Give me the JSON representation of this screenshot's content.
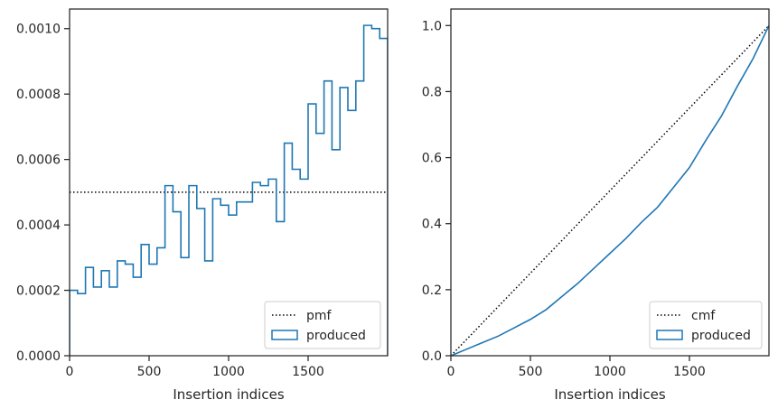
{
  "chart_data": [
    {
      "type": "line",
      "subtype": "step-histogram",
      "title": "",
      "xlabel": "Insertion indices",
      "ylabel": "",
      "xlim": [
        0,
        2000
      ],
      "ylim": [
        0,
        0.00106
      ],
      "xticks": [
        0,
        500,
        1000,
        1500
      ],
      "xtick_labels": [
        "0",
        "500",
        "1000",
        "1500"
      ],
      "yticks": [
        0,
        0.0002,
        0.0004,
        0.0006,
        0.0008,
        0.001
      ],
      "ytick_labels": [
        "0.0000",
        "0.0002",
        "0.0004",
        "0.0006",
        "0.0008",
        "0.0010"
      ],
      "grid": false,
      "legend_position": "lower-right",
      "series": [
        {
          "name": "pmf",
          "style": "dotted",
          "color": "#000000",
          "x": [
            0,
            2000
          ],
          "y": [
            0.0005,
            0.0005
          ]
        },
        {
          "name": "produced",
          "style": "step",
          "color": "#1f77b4",
          "bin_width": 50,
          "bin_edges_start": 0,
          "values": [
            0.0002,
            0.00019,
            0.00027,
            0.00021,
            0.00026,
            0.00021,
            0.00029,
            0.00028,
            0.00024,
            0.00034,
            0.00028,
            0.00033,
            0.00052,
            0.00044,
            0.0003,
            0.00052,
            0.00045,
            0.00029,
            0.00048,
            0.00046,
            0.00043,
            0.00047,
            0.00047,
            0.00053,
            0.00052,
            0.00054,
            0.00041,
            0.00065,
            0.00057,
            0.00054,
            0.00077,
            0.00068,
            0.00084,
            0.00063,
            0.00082,
            0.00075,
            0.00084,
            0.00101,
            0.001,
            0.00097
          ]
        }
      ]
    },
    {
      "type": "line",
      "title": "",
      "xlabel": "Insertion indices",
      "ylabel": "",
      "xlim": [
        0,
        2000
      ],
      "ylim": [
        0,
        1.05
      ],
      "xticks": [
        0,
        500,
        1000,
        1500
      ],
      "xtick_labels": [
        "0",
        "500",
        "1000",
        "1500"
      ],
      "yticks": [
        0,
        0.2,
        0.4,
        0.6,
        0.8,
        1.0
      ],
      "ytick_labels": [
        "0.0",
        "0.2",
        "0.4",
        "0.6",
        "0.8",
        "1.0"
      ],
      "grid": false,
      "legend_position": "lower-right",
      "series": [
        {
          "name": "cmf",
          "style": "dotted",
          "color": "#000000",
          "x": [
            0,
            2000
          ],
          "y": [
            0,
            1.0
          ]
        },
        {
          "name": "produced",
          "style": "step",
          "color": "#1f77b4",
          "x": [
            0,
            100,
            200,
            300,
            400,
            500,
            600,
            700,
            800,
            900,
            1000,
            1100,
            1200,
            1300,
            1400,
            1500,
            1600,
            1700,
            1800,
            1900,
            2000
          ],
          "y": [
            0.0,
            0.02,
            0.04,
            0.06,
            0.085,
            0.11,
            0.14,
            0.18,
            0.22,
            0.265,
            0.31,
            0.355,
            0.405,
            0.45,
            0.51,
            0.57,
            0.65,
            0.725,
            0.815,
            0.9,
            1.0
          ]
        }
      ]
    }
  ]
}
